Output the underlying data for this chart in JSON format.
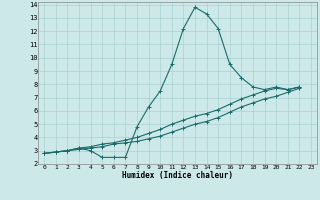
{
  "xlabel": "Humidex (Indice chaleur)",
  "bg_color": "#cce8e8",
  "grid_color": "#aad0d0",
  "line_color": "#1a6b6b",
  "xlim": [
    -0.5,
    23.5
  ],
  "ylim": [
    2,
    14.2
  ],
  "xticks": [
    0,
    1,
    2,
    3,
    4,
    5,
    6,
    7,
    8,
    9,
    10,
    11,
    12,
    13,
    14,
    15,
    16,
    17,
    18,
    19,
    20,
    21,
    22,
    23
  ],
  "yticks": [
    2,
    3,
    4,
    5,
    6,
    7,
    8,
    9,
    10,
    11,
    12,
    13,
    14
  ],
  "line1_x": [
    0,
    1,
    2,
    3,
    4,
    5,
    6,
    7,
    8,
    9,
    10,
    11,
    12,
    13,
    14,
    15,
    16,
    17,
    18,
    19,
    20,
    21,
    22
  ],
  "line1_y": [
    2.8,
    2.9,
    3.0,
    3.2,
    3.0,
    2.5,
    2.5,
    2.5,
    4.8,
    6.3,
    7.5,
    9.5,
    12.2,
    13.8,
    13.3,
    12.2,
    9.5,
    8.5,
    7.8,
    7.6,
    7.8,
    7.6,
    7.8
  ],
  "line2_x": [
    0,
    1,
    2,
    3,
    4,
    5,
    6,
    7,
    8,
    9,
    10,
    11,
    12,
    13,
    14,
    15,
    16,
    17,
    18,
    19,
    20,
    21,
    22
  ],
  "line2_y": [
    2.8,
    2.9,
    3.0,
    3.2,
    3.3,
    3.5,
    3.6,
    3.8,
    4.0,
    4.3,
    4.6,
    5.0,
    5.3,
    5.6,
    5.8,
    6.1,
    6.5,
    6.9,
    7.2,
    7.5,
    7.7,
    7.6,
    7.8
  ],
  "line3_x": [
    0,
    1,
    2,
    3,
    4,
    5,
    6,
    7,
    8,
    9,
    10,
    11,
    12,
    13,
    14,
    15,
    16,
    17,
    18,
    19,
    20,
    21,
    22
  ],
  "line3_y": [
    2.8,
    2.9,
    3.0,
    3.1,
    3.2,
    3.3,
    3.5,
    3.6,
    3.7,
    3.9,
    4.1,
    4.4,
    4.7,
    5.0,
    5.2,
    5.5,
    5.9,
    6.3,
    6.6,
    6.9,
    7.1,
    7.4,
    7.7
  ]
}
